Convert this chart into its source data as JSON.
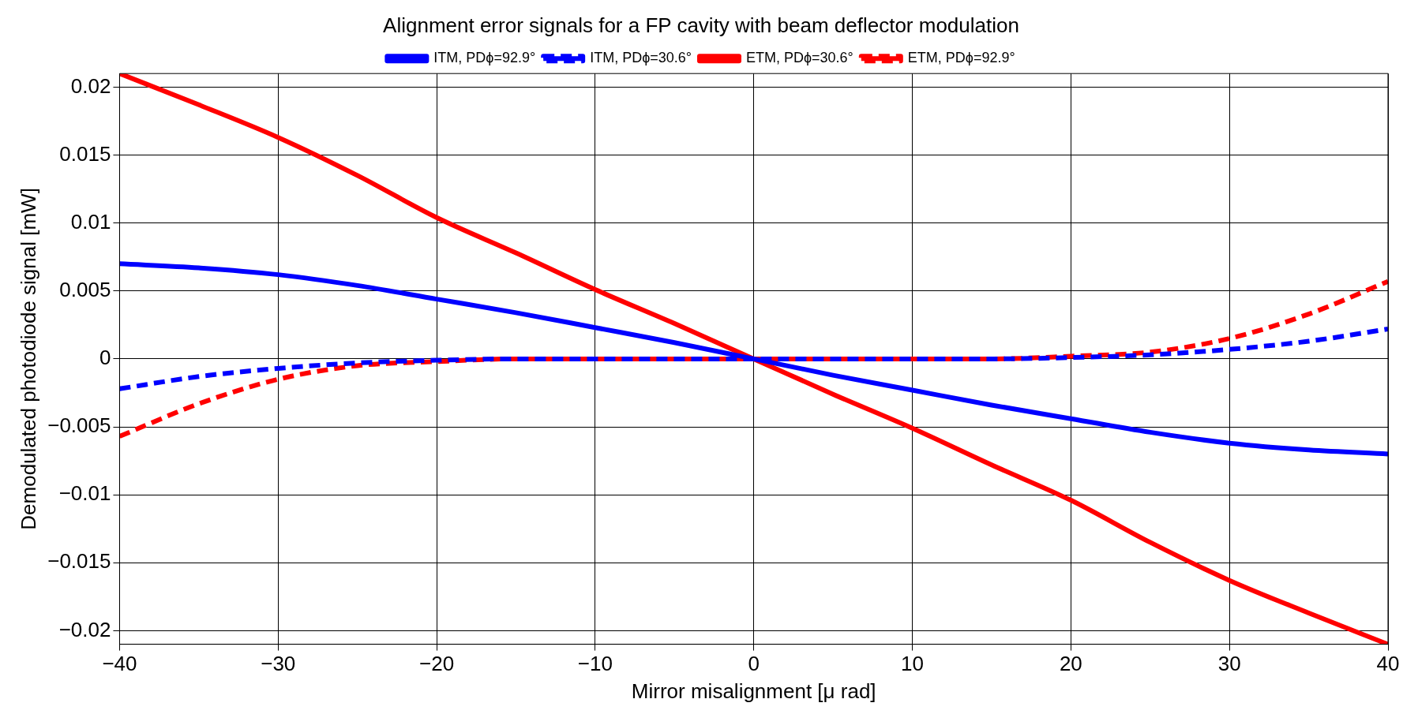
{
  "chart_data": {
    "type": "line",
    "title": "Alignment error signals for a FP cavity with beam deflector modulation",
    "xlabel": "Mirror misalignment [μ rad]",
    "ylabel": "Demodulated photodiode signal [mW]",
    "x": [
      -40,
      -35,
      -30,
      -25,
      -20,
      -15,
      -10,
      -5,
      0,
      5,
      10,
      15,
      20,
      25,
      30,
      35,
      40
    ],
    "series": [
      {
        "name": "ITM, PDϕ=92.9°",
        "color": "#0000ff",
        "line_style": "solid",
        "values": [
          0.007,
          0.0067,
          0.0062,
          0.0054,
          0.0044,
          0.0034,
          0.0023,
          0.0012,
          0,
          -0.0012,
          -0.0023,
          -0.0034,
          -0.0044,
          -0.0054,
          -0.0062,
          -0.0067,
          -0.007
        ]
      },
      {
        "name": "ITM, PDϕ=30.6°",
        "color": "#0000ff",
        "line_style": "dashed",
        "values": [
          -0.0022,
          -0.0013,
          -0.0007,
          -0.0003,
          -0.0001,
          0,
          0,
          0,
          0,
          0,
          0,
          0,
          0.0001,
          0.0003,
          0.0007,
          0.0013,
          0.0022
        ]
      },
      {
        "name": "ETM, PDϕ=30.6°",
        "color": "#ff0000",
        "line_style": "solid",
        "values": [
          0.021,
          0.0187,
          0.0163,
          0.0135,
          0.0104,
          0.0078,
          0.0051,
          0.0026,
          0,
          -0.0026,
          -0.0051,
          -0.0078,
          -0.0104,
          -0.0135,
          -0.0163,
          -0.0187,
          -0.021
        ]
      },
      {
        "name": "ETM, PDϕ=92.9°",
        "color": "#ff0000",
        "line_style": "dashed",
        "values": [
          -0.0057,
          -0.0033,
          -0.0015,
          -0.0005,
          -0.0002,
          0,
          0,
          0,
          0,
          0,
          0,
          0,
          0.0002,
          0.0005,
          0.0015,
          0.0033,
          0.0057
        ]
      }
    ],
    "xlim": [
      -40,
      40
    ],
    "xticks": [
      {
        "value": -40,
        "label": "−40"
      },
      {
        "value": -30,
        "label": "−30"
      },
      {
        "value": -20,
        "label": "−20"
      },
      {
        "value": -10,
        "label": "−10"
      },
      0,
      10,
      20,
      30,
      40
    ],
    "ylim": [
      -0.021,
      0.021
    ],
    "yticks": [
      {
        "value": -0.02,
        "label": "−0.02"
      },
      {
        "value": -0.015,
        "label": "−0.015"
      },
      {
        "value": -0.01,
        "label": "−0.01"
      },
      {
        "value": -0.005,
        "label": "−0.005"
      },
      0,
      0.005,
      0.01,
      0.015,
      0.02
    ],
    "grid": true,
    "legend": "top"
  }
}
